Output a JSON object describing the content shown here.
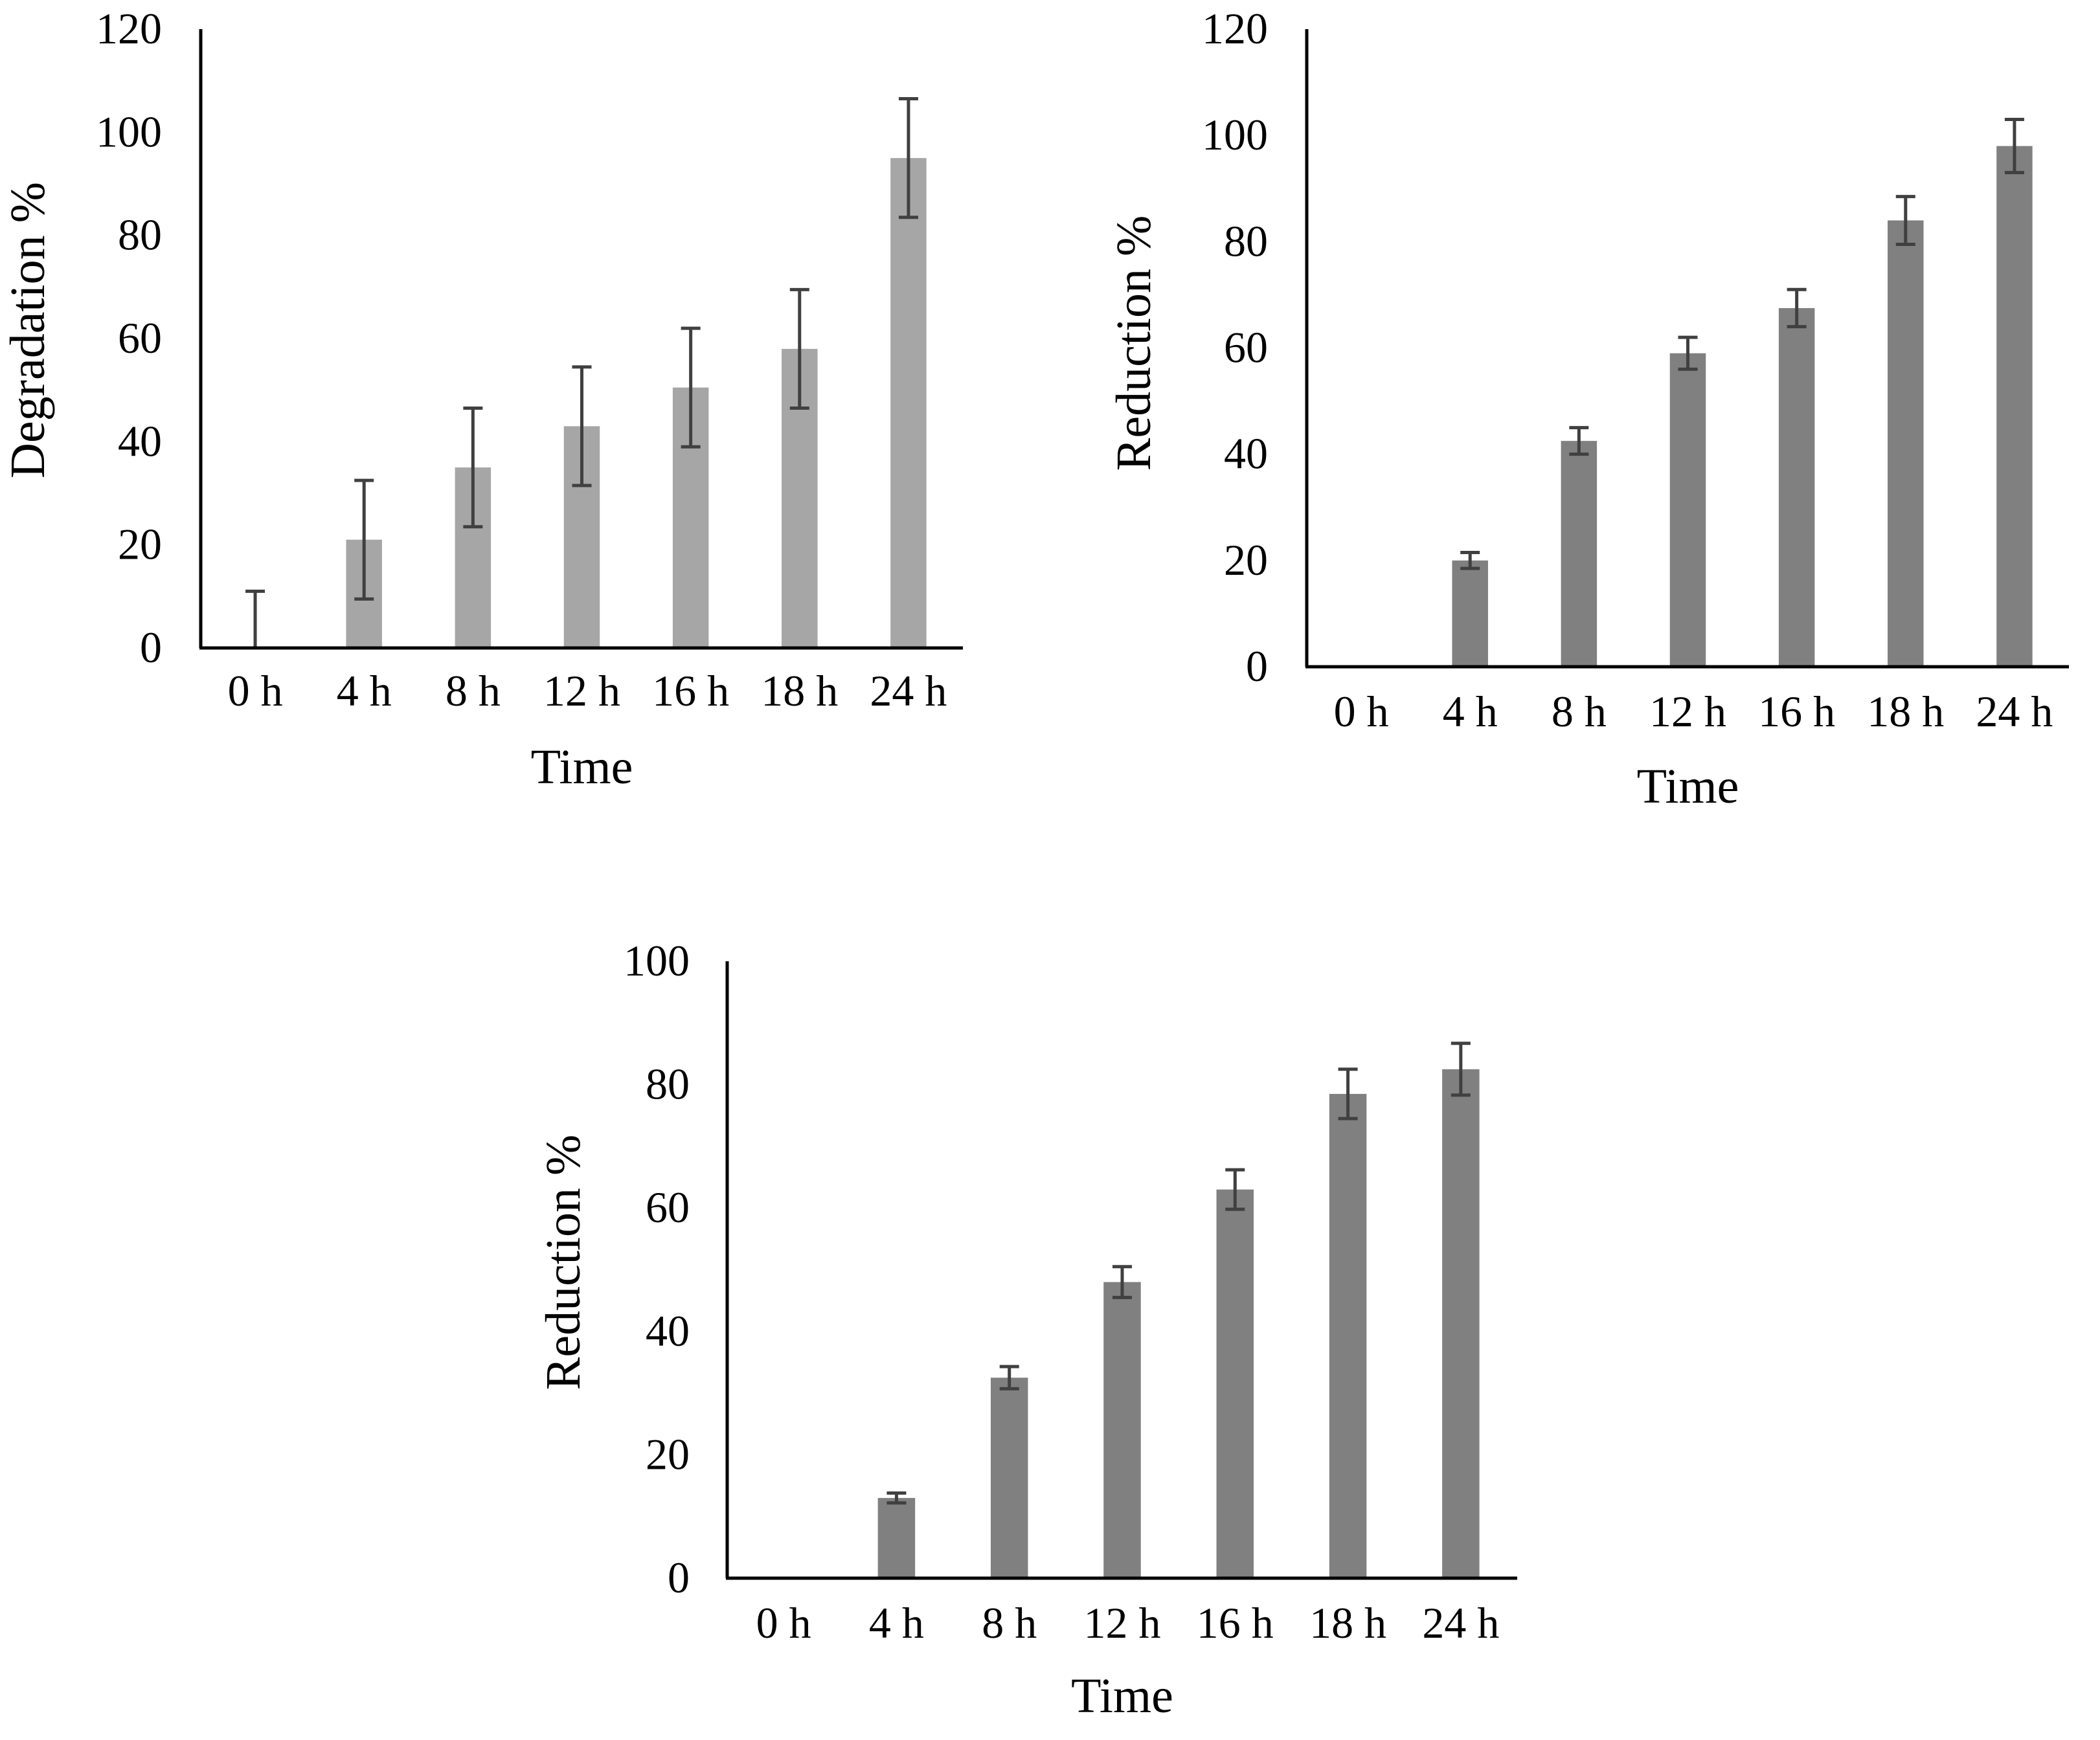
{
  "chart_data": [
    {
      "type": "bar",
      "title": "",
      "xlabel": "Time",
      "ylabel": "Degradation %",
      "categories": [
        "0 h",
        "4 h",
        "8 h",
        "12 h",
        "16 h",
        "18 h",
        "24 h"
      ],
      "values": [
        0,
        21,
        35,
        43,
        50.5,
        58,
        95
      ],
      "error": [
        11,
        11.5,
        11.5,
        11.5,
        11.5,
        11.5,
        11.5
      ],
      "ylim": [
        0,
        120
      ],
      "yticks": [
        "0",
        "20",
        "40",
        "60",
        "80",
        "100",
        "120"
      ],
      "bar_color": "#a6a6a6",
      "grid": false
    },
    {
      "type": "bar",
      "title": "",
      "xlabel": "Time",
      "ylabel": "Reduction %",
      "categories": [
        "0 h",
        "4 h",
        "8 h",
        "12 h",
        "16 h",
        "18 h",
        "24 h"
      ],
      "values": [
        0,
        20,
        42.5,
        59,
        67.5,
        84,
        98
      ],
      "error": [
        0,
        1.5,
        2.5,
        3,
        3.5,
        4.5,
        5
      ],
      "ylim": [
        0,
        120
      ],
      "yticks": [
        "0",
        "20",
        "40",
        "60",
        "80",
        "100",
        "120"
      ],
      "bar_color": "#808080",
      "grid": false
    },
    {
      "type": "bar",
      "title": "",
      "xlabel": "Time",
      "ylabel": "Reduction %",
      "categories": [
        "0 h",
        "4 h",
        "8 h",
        "12 h",
        "16 h",
        "18 h",
        "24 h"
      ],
      "values": [
        0,
        13,
        32.5,
        48,
        63,
        78.5,
        82.5
      ],
      "error": [
        0,
        0.8,
        1.8,
        2.5,
        3.2,
        4,
        4.2
      ],
      "ylim": [
        0,
        100
      ],
      "yticks": [
        "0",
        "20",
        "40",
        "60",
        "80",
        "100"
      ],
      "bar_color": "#808080",
      "grid": false
    }
  ]
}
